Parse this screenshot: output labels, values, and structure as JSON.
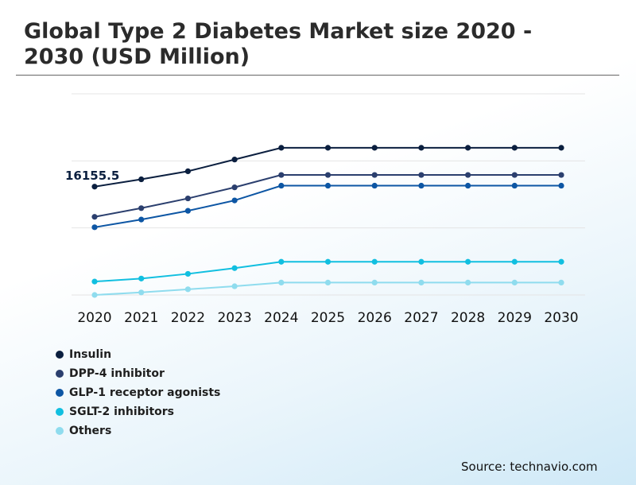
{
  "title": "Global Type 2 Diabetes Market size 2020 - 2030 (USD Million)",
  "source": "Source: technavio.com",
  "colors": {
    "insulin": "#0b1f3f",
    "dpp4": "#2b3f6e",
    "glp1": "#0d56a4",
    "sglt2": "#11bfe0",
    "others": "#8fdcee",
    "grid": "#e4e4e4"
  },
  "chart_data": {
    "type": "line",
    "title": "Global Type 2 Diabetes Market size 2020 - 2030 (USD Million)",
    "x": [
      "2020",
      "2021",
      "2022",
      "2023",
      "2024",
      "2025",
      "2026",
      "2027",
      "2028",
      "2029",
      "2030"
    ],
    "ylim": [
      0,
      30000
    ],
    "grid": "horizontal",
    "legend_position": "bottom-left",
    "annotation": {
      "label": "16155.5",
      "series": "Insulin",
      "x": "2020"
    },
    "series": [
      {
        "name": "Insulin",
        "color": "#0b1f3f",
        "values": [
          16155.5,
          17250,
          18450,
          20200,
          21950,
          21950,
          21950,
          21950,
          21950,
          21950,
          21950
        ]
      },
      {
        "name": "DPP-4 inhibitor",
        "color": "#2b3f6e",
        "values": [
          11650,
          12950,
          14400,
          16050,
          17900,
          17900,
          17900,
          17900,
          17900,
          17900,
          17900
        ]
      },
      {
        "name": "GLP-1 receptor agonists",
        "color": "#0d56a4",
        "values": [
          10100,
          11250,
          12550,
          14100,
          16300,
          16300,
          16300,
          16300,
          16300,
          16300,
          16300
        ]
      },
      {
        "name": "SGLT-2 inhibitors",
        "color": "#11bfe0",
        "values": [
          2000,
          2450,
          3150,
          4000,
          4950,
          4950,
          4950,
          4950,
          4950,
          4950,
          4950
        ]
      },
      {
        "name": "Others",
        "color": "#8fdcee",
        "values": [
          0,
          380,
          850,
          1300,
          1850,
          1850,
          1850,
          1850,
          1850,
          1850,
          1850
        ]
      }
    ]
  }
}
